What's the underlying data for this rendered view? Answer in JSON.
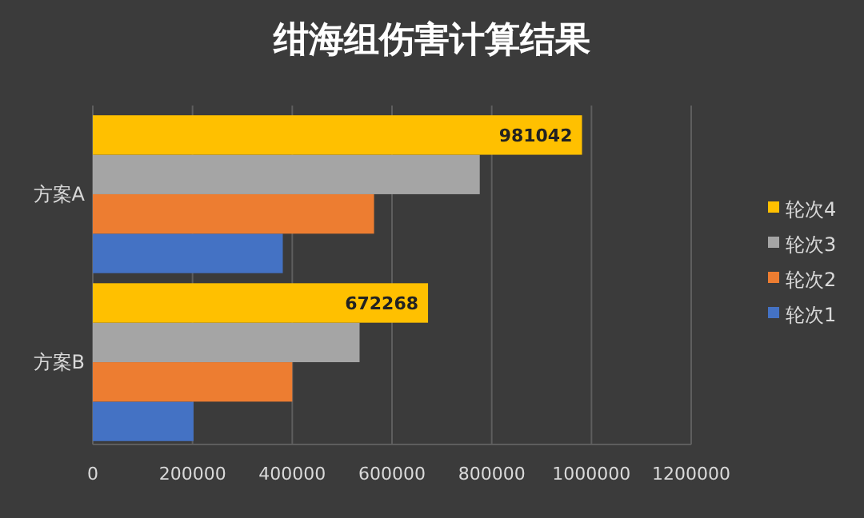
{
  "chart_data": {
    "type": "bar",
    "orientation": "horizontal",
    "title": "绀海组伤害计算结果",
    "categories": [
      "方案A",
      "方案B"
    ],
    "series": [
      {
        "name": "轮次1",
        "color": "#4472c4",
        "values": [
          381000,
          202000
        ]
      },
      {
        "name": "轮次2",
        "color": "#ed7d31",
        "values": [
          564000,
          400000
        ]
      },
      {
        "name": "轮次3",
        "color": "#a5a5a5",
        "values": [
          776000,
          535000
        ]
      },
      {
        "name": "轮次4",
        "color": "#ffc000",
        "values": [
          981042,
          672268
        ],
        "value_labels": [
          "981042",
          "672268"
        ]
      }
    ],
    "xlim": [
      0,
      1200000
    ],
    "xticks": [
      0,
      200000,
      400000,
      600000,
      800000,
      1000000,
      1200000
    ],
    "grid": "x",
    "legend": "right"
  }
}
